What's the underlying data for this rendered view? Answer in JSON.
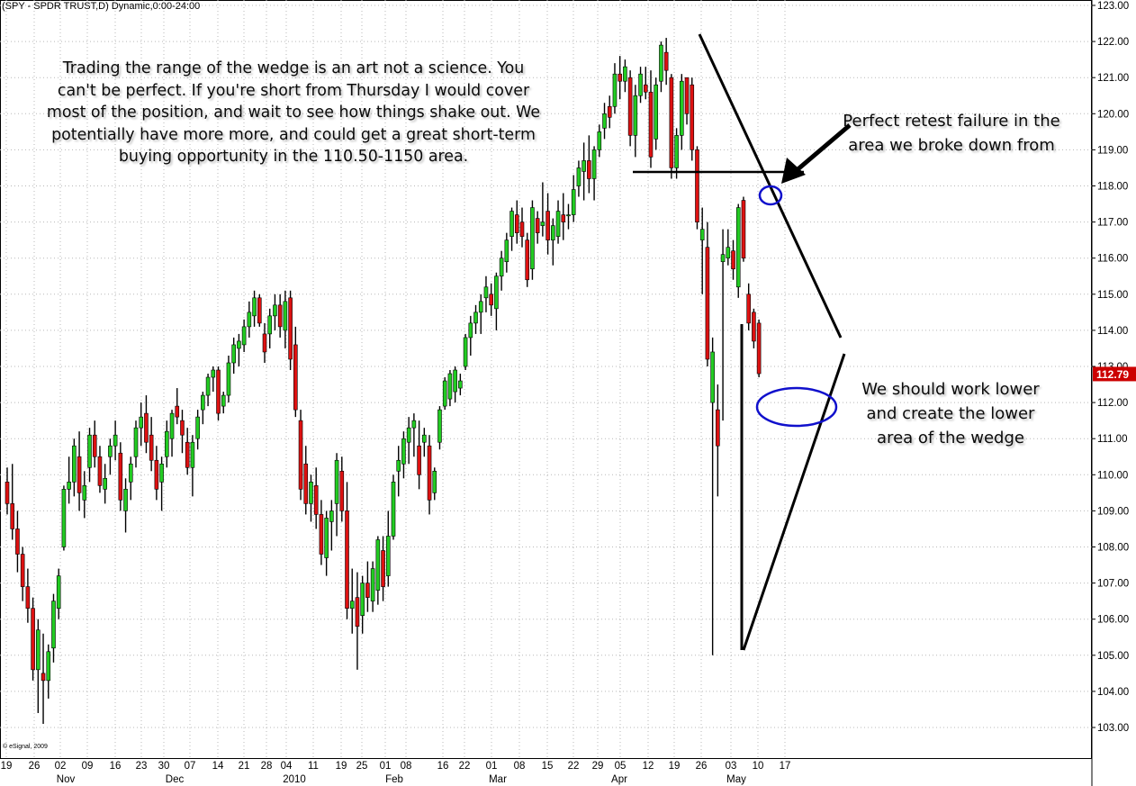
{
  "header": {
    "title": "(SPY - SPDR TRUST,D) Dynamic,0:00-24:00"
  },
  "copyright": "© eSignal, 2009",
  "annotations": {
    "main": [
      "Trading the range of the wedge is an art not a science.  You",
      "can't be perfect.  If you're short from Thursday I would cover",
      "most of the position, and wait to see how things shake out.  We",
      "potentially have more more, and could get a great short-term",
      "buying opportunity in the 110.50-1150 area."
    ],
    "retest": [
      "Perfect retest failure in the",
      "area we broke down from"
    ],
    "lower": [
      "We should work lower",
      "and create the lower",
      "area of the wedge"
    ]
  },
  "colors": {
    "up": "#22cc22",
    "down": "#dd1111",
    "wick": "#000000",
    "price_badge": "#cc0000",
    "ellipse": "#1010cc"
  },
  "chart_data": {
    "type": "candlestick",
    "symbol": "SPY",
    "title": "(SPY - SPDR TRUST,D) Dynamic,0:00-24:00",
    "ylim": [
      102.5,
      123.0
    ],
    "y_ticks": [
      "123.00",
      "122.00",
      "121.00",
      "120.00",
      "119.00",
      "118.00",
      "117.00",
      "116.00",
      "115.00",
      "114.00",
      "113.00",
      "112.00",
      "111.00",
      "110.00",
      "109.00",
      "108.00",
      "107.00",
      "106.00",
      "105.00",
      "104.00",
      "103.00"
    ],
    "last_price": "112.79",
    "x_day_labels": [
      "19",
      "26",
      "02",
      "09",
      "16",
      "23",
      "30",
      "07",
      "14",
      "21",
      "28",
      "04",
      "11",
      "19",
      "25",
      "01",
      "08",
      "16",
      "22",
      "01",
      "08",
      "15",
      "22",
      "29",
      "05",
      "12",
      "19",
      "26",
      "03",
      "10",
      "17"
    ],
    "x_month_labels": [
      "Nov",
      "Dec",
      "2010",
      "Feb",
      "Mar",
      "Apr",
      "May"
    ],
    "candles": [
      [
        109.8,
        110.2,
        108.9,
        109.2
      ],
      [
        109.2,
        110.3,
        108.2,
        108.5
      ],
      [
        108.5,
        109.0,
        107.3,
        107.8
      ],
      [
        107.8,
        108.0,
        106.5,
        106.9
      ],
      [
        106.9,
        107.4,
        105.9,
        106.3
      ],
      [
        106.3,
        106.6,
        104.3,
        104.6
      ],
      [
        104.6,
        106.0,
        103.4,
        105.7
      ],
      [
        104.5,
        105.6,
        103.1,
        104.3
      ],
      [
        104.3,
        105.3,
        103.8,
        105.1
      ],
      [
        105.2,
        106.7,
        104.8,
        106.5
      ],
      [
        106.3,
        107.4,
        106.0,
        107.2
      ],
      [
        108.0,
        109.7,
        107.9,
        109.6
      ],
      [
        109.6,
        110.5,
        109.2,
        109.8
      ],
      [
        109.8,
        111.0,
        109.4,
        110.8
      ],
      [
        110.5,
        111.2,
        109.0,
        109.5
      ],
      [
        109.3,
        110.1,
        108.8,
        109.7
      ],
      [
        110.2,
        111.3,
        109.8,
        111.1
      ],
      [
        111.1,
        111.5,
        110.2,
        110.5
      ],
      [
        110.5,
        110.8,
        109.5,
        109.7
      ],
      [
        109.6,
        110.3,
        109.2,
        109.9
      ],
      [
        110.5,
        111.0,
        110.0,
        110.8
      ],
      [
        110.8,
        111.5,
        110.4,
        111.1
      ],
      [
        110.6,
        110.9,
        109.0,
        109.3
      ],
      [
        109.0,
        109.9,
        108.4,
        109.6
      ],
      [
        109.8,
        110.5,
        109.3,
        110.3
      ],
      [
        110.5,
        111.5,
        110.2,
        111.3
      ],
      [
        111.3,
        112.0,
        110.8,
        111.6
      ],
      [
        111.7,
        112.2,
        110.6,
        110.9
      ],
      [
        111.1,
        111.6,
        110.1,
        110.4
      ],
      [
        110.4,
        110.8,
        109.3,
        109.6
      ],
      [
        109.8,
        110.5,
        109.0,
        110.3
      ],
      [
        110.5,
        111.5,
        110.2,
        111.2
      ],
      [
        111.0,
        111.8,
        110.5,
        111.7
      ],
      [
        111.9,
        112.4,
        111.4,
        111.6
      ],
      [
        111.5,
        111.8,
        110.6,
        111.1
      ],
      [
        110.9,
        111.3,
        110.0,
        110.2
      ],
      [
        110.2,
        111.1,
        109.4,
        110.9
      ],
      [
        111.0,
        111.8,
        110.7,
        111.6
      ],
      [
        111.8,
        112.3,
        111.4,
        112.2
      ],
      [
        112.2,
        112.8,
        111.9,
        112.7
      ],
      [
        112.7,
        113.0,
        112.3,
        112.9
      ],
      [
        112.9,
        113.0,
        111.5,
        111.7
      ],
      [
        111.9,
        112.3,
        111.7,
        112.2
      ],
      [
        112.2,
        113.3,
        112.0,
        113.1
      ],
      [
        113.1,
        113.8,
        112.8,
        113.6
      ],
      [
        113.5,
        113.9,
        113.0,
        113.7
      ],
      [
        113.6,
        114.3,
        113.4,
        114.1
      ],
      [
        114.1,
        114.8,
        113.8,
        114.5
      ],
      [
        114.4,
        115.1,
        114.1,
        114.9
      ],
      [
        114.9,
        115.0,
        114.1,
        114.2
      ],
      [
        113.9,
        114.2,
        113.1,
        113.4
      ],
      [
        113.9,
        114.6,
        113.5,
        114.4
      ],
      [
        114.4,
        115.0,
        114.0,
        114.7
      ],
      [
        114.7,
        115.0,
        113.8,
        114.1
      ],
      [
        114.0,
        115.1,
        113.5,
        114.8
      ],
      [
        114.9,
        115.1,
        112.9,
        113.2
      ],
      [
        113.6,
        114.1,
        111.6,
        111.8
      ],
      [
        111.5,
        111.8,
        109.3,
        109.6
      ],
      [
        110.3,
        110.8,
        108.9,
        109.2
      ],
      [
        109.2,
        110.0,
        108.7,
        109.8
      ],
      [
        109.7,
        110.2,
        108.5,
        108.9
      ],
      [
        108.9,
        109.3,
        107.5,
        107.8
      ],
      [
        107.7,
        109.0,
        107.2,
        108.8
      ],
      [
        108.7,
        109.3,
        107.9,
        109.0
      ],
      [
        109.2,
        110.6,
        108.3,
        110.4
      ],
      [
        110.1,
        110.5,
        108.7,
        109.0
      ],
      [
        109.0,
        109.8,
        106.0,
        106.3
      ],
      [
        106.3,
        107.4,
        105.6,
        106.5
      ],
      [
        106.6,
        107.3,
        104.6,
        105.8
      ],
      [
        106.1,
        107.2,
        105.6,
        107.0
      ],
      [
        107.0,
        107.6,
        106.2,
        106.6
      ],
      [
        106.5,
        107.6,
        106.2,
        107.4
      ],
      [
        106.8,
        108.3,
        106.4,
        108.2
      ],
      [
        107.9,
        108.3,
        106.5,
        106.9
      ],
      [
        107.2,
        109.0,
        106.9,
        108.3
      ],
      [
        108.3,
        110.0,
        108.2,
        109.8
      ],
      [
        110.1,
        110.8,
        109.4,
        110.4
      ],
      [
        110.3,
        111.2,
        109.9,
        111.0
      ],
      [
        110.9,
        111.6,
        110.3,
        111.3
      ],
      [
        111.3,
        111.7,
        110.5,
        111.5
      ],
      [
        110.8,
        111.5,
        109.6,
        110.0
      ],
      [
        110.9,
        111.3,
        110.5,
        111.1
      ],
      [
        110.8,
        111.1,
        108.9,
        109.3
      ],
      [
        109.5,
        110.2,
        109.3,
        110.1
      ],
      [
        110.9,
        111.9,
        110.7,
        111.8
      ],
      [
        111.9,
        112.7,
        111.8,
        112.6
      ],
      [
        112.1,
        112.9,
        111.9,
        112.8
      ],
      [
        112.3,
        113.0,
        112.0,
        112.9
      ],
      [
        112.4,
        112.8,
        112.2,
        112.6
      ],
      [
        113.0,
        113.9,
        112.9,
        113.8
      ],
      [
        113.8,
        114.4,
        113.3,
        114.2
      ],
      [
        114.2,
        114.7,
        113.9,
        114.5
      ],
      [
        114.5,
        115.0,
        113.9,
        114.8
      ],
      [
        114.9,
        115.5,
        114.5,
        115.2
      ],
      [
        115.0,
        115.3,
        114.4,
        114.7
      ],
      [
        114.6,
        115.6,
        114.0,
        115.5
      ],
      [
        115.5,
        116.2,
        115.1,
        116.0
      ],
      [
        115.9,
        116.7,
        115.6,
        116.5
      ],
      [
        116.6,
        117.4,
        116.2,
        117.3
      ],
      [
        117.2,
        117.6,
        116.4,
        116.7
      ],
      [
        117.0,
        117.4,
        116.3,
        116.6
      ],
      [
        116.5,
        116.7,
        115.2,
        115.4
      ],
      [
        115.7,
        117.6,
        115.4,
        117.4
      ],
      [
        117.1,
        117.3,
        116.4,
        116.7
      ],
      [
        116.9,
        118.1,
        116.6,
        117.0
      ],
      [
        117.3,
        117.8,
        116.1,
        116.5
      ],
      [
        116.5,
        117.1,
        115.8,
        116.9
      ],
      [
        116.6,
        117.6,
        116.4,
        117.3
      ],
      [
        117.2,
        117.8,
        116.5,
        117.0
      ],
      [
        117.2,
        117.5,
        116.8,
        117.2
      ],
      [
        117.2,
        118.3,
        117.0,
        117.9
      ],
      [
        118.0,
        118.7,
        117.7,
        118.5
      ],
      [
        118.4,
        119.2,
        117.6,
        118.7
      ],
      [
        118.7,
        119.4,
        117.8,
        118.2
      ],
      [
        118.2,
        119.1,
        117.6,
        119.0
      ],
      [
        119.0,
        119.7,
        118.8,
        119.5
      ],
      [
        119.6,
        120.3,
        119.3,
        120.0
      ],
      [
        120.2,
        120.5,
        119.6,
        119.9
      ],
      [
        120.2,
        121.4,
        120.0,
        121.1
      ],
      [
        121.1,
        121.6,
        120.4,
        120.9
      ],
      [
        120.9,
        121.5,
        120.6,
        121.3
      ],
      [
        121.0,
        121.2,
        119.1,
        119.4
      ],
      [
        119.4,
        120.8,
        118.8,
        120.5
      ],
      [
        120.5,
        121.3,
        120.3,
        121.1
      ],
      [
        120.8,
        121.3,
        120.4,
        120.6
      ],
      [
        120.6,
        121.2,
        118.5,
        118.8
      ],
      [
        119.3,
        121.0,
        119.0,
        120.8
      ],
      [
        120.9,
        122.0,
        120.6,
        121.9
      ],
      [
        121.7,
        122.1,
        120.8,
        121.2
      ],
      [
        121.0,
        121.1,
        118.2,
        118.5
      ],
      [
        118.5,
        119.6,
        118.2,
        119.4
      ],
      [
        119.4,
        121.1,
        119.0,
        120.9
      ],
      [
        121.0,
        121.0,
        119.7,
        120.0
      ],
      [
        120.8,
        121.0,
        118.7,
        119.0
      ],
      [
        119.0,
        119.1,
        116.8,
        117.0
      ],
      [
        116.5,
        117.4,
        115.0,
        116.8
      ],
      [
        116.3,
        117.0,
        113.0,
        113.2
      ],
      [
        112.0,
        113.8,
        105.0,
        113.4
      ],
      [
        111.8,
        112.5,
        109.4,
        110.8
      ],
      [
        115.9,
        116.8,
        111.5,
        116.1
      ],
      [
        116.0,
        116.8,
        115.8,
        116.3
      ],
      [
        116.2,
        116.5,
        115.4,
        115.7
      ],
      [
        115.2,
        117.5,
        114.9,
        117.4
      ],
      [
        117.6,
        117.7,
        115.9,
        116.0
      ],
      [
        115.0,
        115.3,
        114.0,
        114.2
      ],
      [
        114.5,
        114.6,
        113.5,
        113.7
      ],
      [
        114.2,
        114.3,
        112.7,
        112.8
      ]
    ]
  }
}
